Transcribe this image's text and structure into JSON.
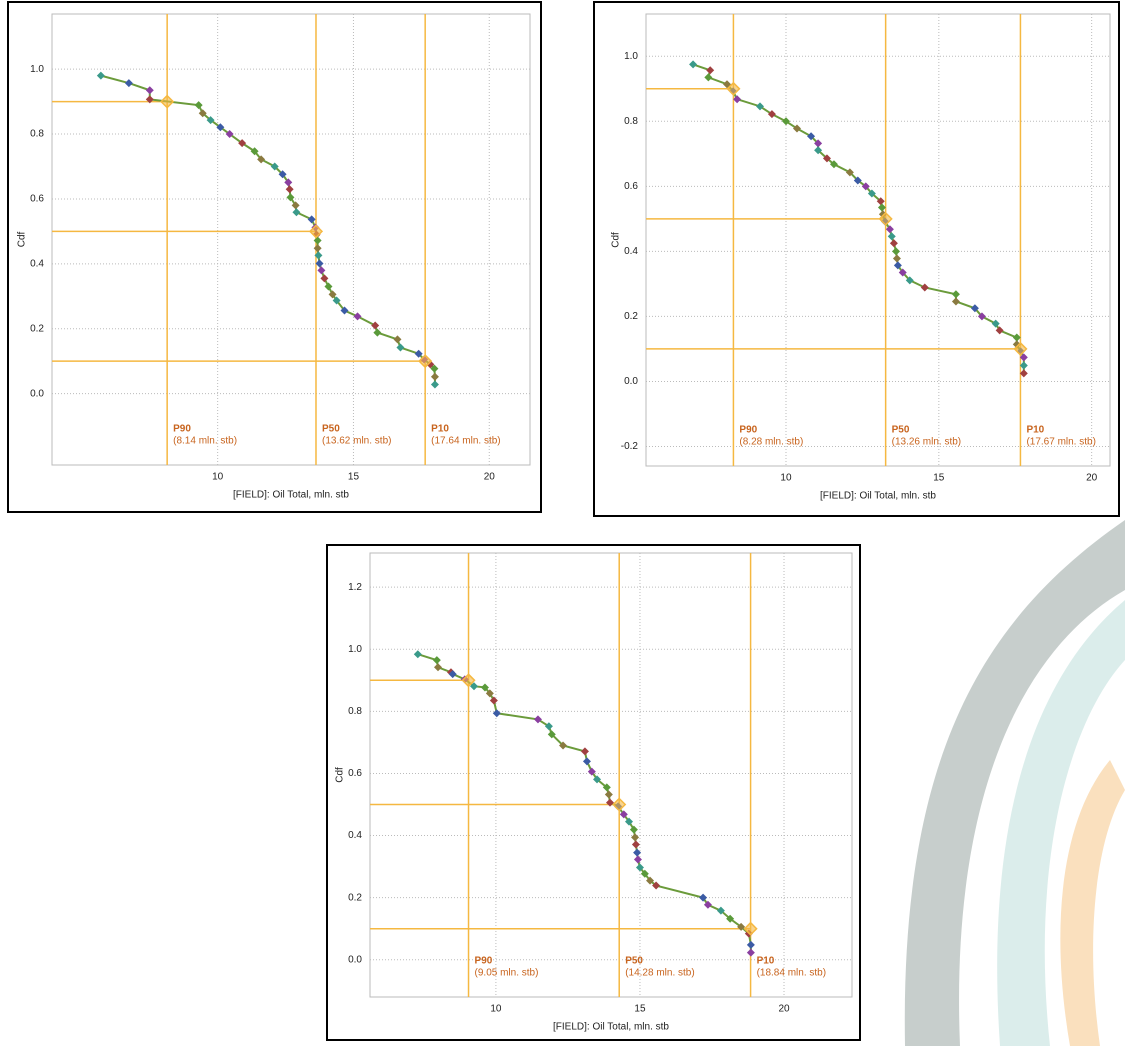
{
  "chart_data": [
    {
      "type": "line",
      "xlabel": "[FIELD]:  Oil Total, mln. stb",
      "ylabel": "Cdf",
      "xlim": [
        3.9,
        21.5
      ],
      "ylim": [
        -0.22,
        1.17
      ],
      "xticks": [
        10,
        15,
        20
      ],
      "yticks": [
        {
          "value": 0,
          "label": "0.0"
        },
        0.2,
        0.4,
        0.6,
        0.8,
        {
          "value": 1,
          "label": "1.0"
        }
      ],
      "grid": true,
      "color": "#6b9b3b",
      "marker_colors": [
        "#3a9a8a",
        "#3b5ba5",
        "#8a3fa0",
        "#a04040",
        "#5a9a3a",
        "#8a7a40"
      ],
      "x": [
        5.7,
        6.73,
        7.5,
        7.5,
        9.3,
        9.45,
        9.74,
        10.1,
        10.44,
        10.9,
        11.36,
        11.6,
        12.1,
        12.39,
        12.6,
        12.65,
        12.68,
        12.87,
        12.9,
        13.46,
        13.6,
        13.64,
        13.68,
        13.68,
        13.71,
        13.75,
        13.82,
        13.93,
        14.08,
        14.23,
        14.38,
        14.67,
        15.15,
        15.8,
        15.88,
        16.62,
        16.73,
        17.4,
        17.6,
        17.83,
        17.98,
        18.0,
        18.0
      ],
      "values": [
        0.98,
        0.957,
        0.935,
        0.907,
        0.889,
        0.864,
        0.843,
        0.821,
        0.8,
        0.772,
        0.747,
        0.722,
        0.7,
        0.676,
        0.651,
        0.63,
        0.605,
        0.58,
        0.559,
        0.537,
        0.512,
        0.49,
        0.472,
        0.448,
        0.426,
        0.401,
        0.38,
        0.355,
        0.33,
        0.306,
        0.287,
        0.256,
        0.238,
        0.21,
        0.188,
        0.167,
        0.142,
        0.123,
        0.105,
        0.09,
        0.077,
        0.052,
        0.028
      ],
      "percentile_color": "#f5b841",
      "percentile_text_color": "#c8641e",
      "percentiles": [
        {
          "label": "P90",
          "value_label": "(8.14 mln. stb)",
          "x": 8.14,
          "y": 0.9
        },
        {
          "label": "P50",
          "value_label": "(13.62 mln. stb)",
          "x": 13.62,
          "y": 0.5
        },
        {
          "label": "P10",
          "value_label": "(17.64 mln. stb)",
          "x": 17.64,
          "y": 0.1
        }
      ]
    },
    {
      "type": "line",
      "xlabel": "[FIELD]:  Oil Total, mln. stb",
      "ylabel": "Cdf",
      "xlim": [
        5.42,
        20.6
      ],
      "ylim": [
        -0.26,
        1.13
      ],
      "xticks": [
        10,
        15,
        20
      ],
      "yticks": [
        -0.2,
        {
          "value": 0,
          "label": "0.0"
        },
        0.2,
        0.4,
        0.6,
        0.8,
        {
          "value": 1,
          "label": "1.0"
        }
      ],
      "grid": true,
      "color": "#6b9b3b",
      "marker_colors": [
        "#3a9a8a",
        "#a04040",
        "#5a9a3a",
        "#8a7a40",
        "#3b5ba5",
        "#8a3fa0"
      ],
      "x": [
        6.96,
        7.52,
        7.46,
        8.07,
        8.27,
        8.4,
        9.15,
        9.54,
        10.0,
        10.36,
        10.82,
        11.05,
        11.05,
        11.34,
        11.57,
        12.09,
        12.35,
        12.61,
        12.81,
        13.1,
        13.14,
        13.17,
        13.24,
        13.4,
        13.46,
        13.53,
        13.6,
        13.63,
        13.66,
        13.82,
        14.05,
        14.54,
        15.56,
        15.56,
        16.18,
        16.41,
        16.86,
        16.99,
        17.55,
        17.55,
        17.68,
        17.78,
        17.78,
        17.78
      ],
      "values": [
        0.975,
        0.957,
        0.935,
        0.914,
        0.892,
        0.868,
        0.846,
        0.822,
        0.8,
        0.778,
        0.754,
        0.732,
        0.711,
        0.686,
        0.668,
        0.643,
        0.618,
        0.6,
        0.578,
        0.554,
        0.535,
        0.514,
        0.492,
        0.468,
        0.446,
        0.425,
        0.4,
        0.378,
        0.357,
        0.335,
        0.311,
        0.289,
        0.268,
        0.246,
        0.225,
        0.2,
        0.178,
        0.157,
        0.135,
        0.114,
        0.092,
        0.074,
        0.049,
        0.025
      ],
      "percentile_color": "#f5b841",
      "percentile_text_color": "#c8641e",
      "percentiles": [
        {
          "label": "P90",
          "value_label": "(8.28 mln. stb)",
          "x": 8.28,
          "y": 0.9
        },
        {
          "label": "P50",
          "value_label": "(13.26 mln. stb)",
          "x": 13.26,
          "y": 0.5
        },
        {
          "label": "P10",
          "value_label": "(17.67 mln. stb)",
          "x": 17.67,
          "y": 0.1
        }
      ]
    },
    {
      "type": "line",
      "xlabel": "[FIELD]:  Oil Total, mln. stb",
      "ylabel": "Cdf",
      "xlim": [
        5.63,
        22.36
      ],
      "ylim": [
        -0.12,
        1.31
      ],
      "xticks": [
        10,
        15,
        20
      ],
      "yticks": [
        {
          "value": 0,
          "label": "0.0"
        },
        0.2,
        0.4,
        0.6,
        0.8,
        {
          "value": 1,
          "label": "1.0"
        },
        1.2
      ],
      "grid": true,
      "color": "#6b9b3b",
      "marker_colors": [
        "#3a9a8a",
        "#5a9a3a",
        "#8a7a40",
        "#a04040",
        "#3b5ba5",
        "#8a3fa0"
      ],
      "x": [
        7.29,
        7.95,
        7.99,
        8.44,
        8.5,
        8.92,
        9.24,
        9.62,
        9.79,
        9.93,
        10.03,
        11.46,
        11.84,
        11.94,
        12.33,
        13.09,
        13.16,
        13.33,
        13.51,
        13.85,
        13.92,
        13.96,
        14.24,
        14.44,
        14.62,
        14.79,
        14.83,
        14.86,
        14.9,
        14.93,
        15.0,
        15.17,
        15.35,
        15.56,
        17.19,
        17.36,
        17.81,
        18.13,
        18.51,
        18.78,
        18.85,
        18.85
      ],
      "values": [
        0.984,
        0.965,
        0.942,
        0.926,
        0.92,
        0.903,
        0.881,
        0.877,
        0.858,
        0.835,
        0.794,
        0.774,
        0.752,
        0.726,
        0.69,
        0.671,
        0.639,
        0.606,
        0.581,
        0.555,
        0.532,
        0.506,
        0.494,
        0.468,
        0.445,
        0.419,
        0.394,
        0.371,
        0.345,
        0.323,
        0.297,
        0.277,
        0.255,
        0.239,
        0.2,
        0.177,
        0.158,
        0.132,
        0.106,
        0.084,
        0.048,
        0.023
      ],
      "percentile_color": "#f5b841",
      "percentile_text_color": "#c8641e",
      "percentiles": [
        {
          "label": "P90",
          "value_label": "(9.05 mln. stb)",
          "x": 9.05,
          "y": 0.9
        },
        {
          "label": "P50",
          "value_label": "(14.28 mln. stb)",
          "x": 14.28,
          "y": 0.5
        },
        {
          "label": "P10",
          "value_label": "(18.84 mln. stb)",
          "x": 18.84,
          "y": 0.1
        }
      ]
    }
  ]
}
